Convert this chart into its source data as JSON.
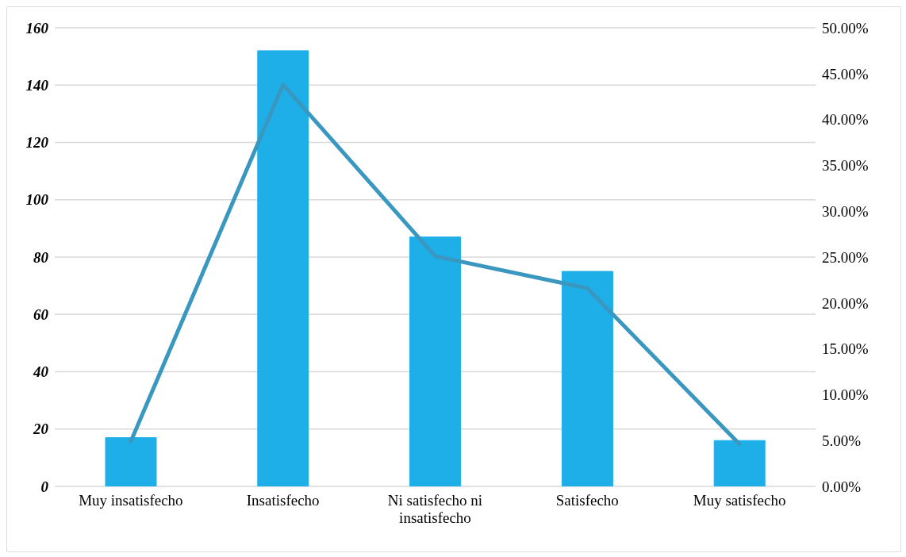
{
  "chart_data": {
    "type": "bar",
    "categories": [
      "Muy insatisfecho",
      "Insatisfecho",
      "Ni satisfecho ni insatisfecho",
      "Satisfecho",
      "Muy satisfecho"
    ],
    "series": [
      {
        "color": "#1eaee8",
        "values": [
          17,
          152,
          87,
          75,
          16
        ]
      },
      {
        "type": "line",
        "axis": "y2",
        "color": "#3a97c0",
        "values": [
          4.9,
          43.8,
          25.1,
          21.6,
          4.6
        ]
      }
    ],
    "ylim": [
      0,
      160
    ],
    "yticks": [
      0,
      20,
      40,
      60,
      80,
      100,
      120,
      140,
      160
    ],
    "y2lim": [
      0,
      50
    ],
    "y2ticks": [
      {
        "value": 0,
        "label": "0.00%"
      },
      {
        "value": 5,
        "label": "5.00%"
      },
      {
        "value": 10,
        "label": "10.00%"
      },
      {
        "value": 15,
        "label": "15.00%"
      },
      {
        "value": 20,
        "label": "20.00%"
      },
      {
        "value": 25,
        "label": "25.00%"
      },
      {
        "value": 30,
        "label": "30.00%"
      },
      {
        "value": 35,
        "label": "35.00%"
      },
      {
        "value": 40,
        "label": "40.00%"
      },
      {
        "value": 45,
        "label": "45.00%"
      },
      {
        "value": 50,
        "label": "50.00%"
      }
    ],
    "grid": "y",
    "marker": "none",
    "line_style": "solid"
  }
}
